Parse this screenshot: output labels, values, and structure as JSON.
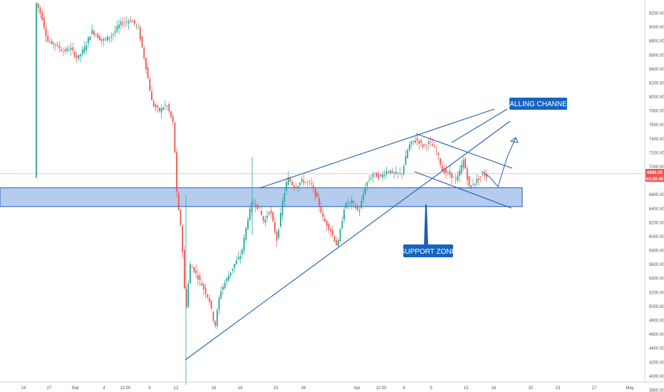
{
  "chart_data": {
    "type": "candlestick",
    "y_axis": {
      "range": [
        3800,
        9400
      ],
      "ticks": [
        "9200.00",
        "9000.00",
        "8800.00",
        "8600.00",
        "8400.00",
        "8200.00",
        "8000.00",
        "7800.00",
        "7600.00",
        "7400.00",
        "7200.00",
        "7000.00",
        "6800.00",
        "6600.00",
        "6400.00",
        "6200.00",
        "6000.00",
        "5800.00",
        "5600.00",
        "5400.00",
        "5200.00",
        "5000.00",
        "4800.00",
        "4600.00",
        "4400.00",
        "4200.00",
        "4000.00",
        "3800.00"
      ]
    },
    "x_axis": {
      "ticks": [
        "24",
        "27",
        "Mar",
        "4",
        "12:00",
        "9",
        "12",
        "16",
        "19",
        "23",
        "26",
        "Apr",
        "12:00",
        "6",
        "9",
        "13",
        "16",
        "20",
        "23",
        "27",
        "May"
      ]
    },
    "current_price": {
      "value": 6900,
      "label": "6900.25",
      "countdown": "01:08:46"
    },
    "support_zone": {
      "label": "SUPPORT ZONE",
      "low": 6430,
      "high": 6700
    },
    "falling_channel": {
      "label": "FALLING CHANNEL"
    },
    "candles": [],
    "colors": {
      "up": "#26a69a",
      "down": "#ef5350",
      "line": "#1e5fb4",
      "zone_fill": "#5b8fd9",
      "price_line": "#ef5350",
      "label_bg": "#1565c0"
    }
  }
}
